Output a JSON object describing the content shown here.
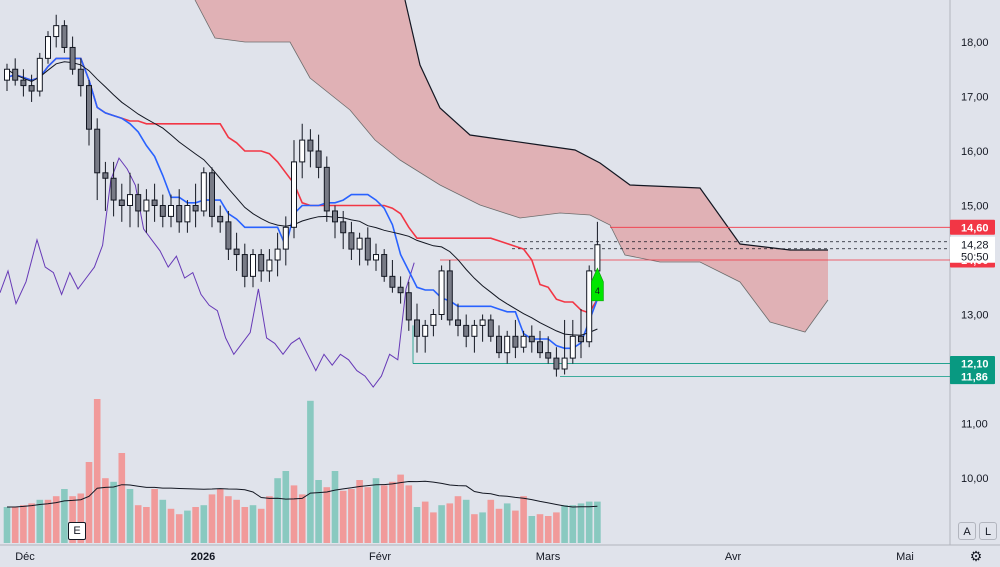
{
  "chart_data": {
    "type": "candlestick",
    "price_axis": {
      "ticks": [
        "18,00",
        "17,00",
        "16,00",
        "15,00",
        "13,00",
        "12,00",
        "11,00",
        "10,00"
      ],
      "tick_values": [
        18,
        17,
        16,
        15,
        13,
        12,
        11,
        10
      ],
      "range": [
        9.35,
        18.6
      ]
    },
    "time_axis": {
      "labels": [
        "Déc",
        "2026",
        "Févr",
        "Mars",
        "Avr",
        "Mai"
      ],
      "bold_label": "2026"
    },
    "price_tags": [
      {
        "label": "14,60",
        "value": 14.6,
        "color": "#f23645"
      },
      {
        "label": "14,00",
        "value": 14.0,
        "color": "#f23645"
      },
      {
        "label": "12,10",
        "value": 12.1,
        "color": "#089981"
      },
      {
        "label": "11,86",
        "value": 11.86,
        "color": "#089981"
      }
    ],
    "last_price": {
      "value_label": "14,28",
      "countdown_label": "50:50",
      "value": 14.28
    },
    "candles_ohlc": [
      [
        17.3,
        17.6,
        17.1,
        17.5
      ],
      [
        17.5,
        17.7,
        17.2,
        17.3
      ],
      [
        17.3,
        17.5,
        17.0,
        17.2
      ],
      [
        17.2,
        17.4,
        16.9,
        17.1
      ],
      [
        17.1,
        17.8,
        17.0,
        17.7
      ],
      [
        17.7,
        18.2,
        17.6,
        18.1
      ],
      [
        18.1,
        18.5,
        17.9,
        18.3
      ],
      [
        18.3,
        18.4,
        17.8,
        17.9
      ],
      [
        17.9,
        18.1,
        17.4,
        17.5
      ],
      [
        17.5,
        17.7,
        17.0,
        17.2
      ],
      [
        17.2,
        17.3,
        16.1,
        16.4
      ],
      [
        16.4,
        16.6,
        15.1,
        15.6
      ],
      [
        15.6,
        15.8,
        14.9,
        15.5
      ],
      [
        15.5,
        15.8,
        14.8,
        15.1
      ],
      [
        15.1,
        15.4,
        14.7,
        15.0
      ],
      [
        15.0,
        15.6,
        14.6,
        15.2
      ],
      [
        15.2,
        15.4,
        14.6,
        14.9
      ],
      [
        14.9,
        15.3,
        14.5,
        15.1
      ],
      [
        15.1,
        15.4,
        14.7,
        15.0
      ],
      [
        15.0,
        15.2,
        14.6,
        14.8
      ],
      [
        14.8,
        15.2,
        14.6,
        15.0
      ],
      [
        15.0,
        15.3,
        14.5,
        14.7
      ],
      [
        14.7,
        15.1,
        14.5,
        15.0
      ],
      [
        15.0,
        15.4,
        14.6,
        14.9
      ],
      [
        14.9,
        15.7,
        14.8,
        15.6
      ],
      [
        15.6,
        15.7,
        14.6,
        14.8
      ],
      [
        14.8,
        15.0,
        14.5,
        14.7
      ],
      [
        14.7,
        14.9,
        14.0,
        14.2
      ],
      [
        14.2,
        14.5,
        13.8,
        14.1
      ],
      [
        14.1,
        14.3,
        13.5,
        13.7
      ],
      [
        13.7,
        14.2,
        13.5,
        14.1
      ],
      [
        14.1,
        14.2,
        13.6,
        13.8
      ],
      [
        13.8,
        14.2,
        13.6,
        14.0
      ],
      [
        14.0,
        14.5,
        13.7,
        14.2
      ],
      [
        14.2,
        14.8,
        13.9,
        14.6
      ],
      [
        14.6,
        16.2,
        14.4,
        15.8
      ],
      [
        15.8,
        16.5,
        15.5,
        16.2
      ],
      [
        16.2,
        16.4,
        15.7,
        16.0
      ],
      [
        16.0,
        16.3,
        15.5,
        15.7
      ],
      [
        15.7,
        15.9,
        14.7,
        14.9
      ],
      [
        14.9,
        15.0,
        14.4,
        14.7
      ],
      [
        14.7,
        14.9,
        14.2,
        14.5
      ],
      [
        14.5,
        14.7,
        14.0,
        14.2
      ],
      [
        14.2,
        14.5,
        13.9,
        14.4
      ],
      [
        14.4,
        14.6,
        13.9,
        14.0
      ],
      [
        14.0,
        14.3,
        13.8,
        14.1
      ],
      [
        14.1,
        14.2,
        13.6,
        13.7
      ],
      [
        13.7,
        14.0,
        13.4,
        13.5
      ],
      [
        13.5,
        13.7,
        13.2,
        13.4
      ],
      [
        13.4,
        13.6,
        12.7,
        12.9
      ],
      [
        12.9,
        13.2,
        12.3,
        12.6
      ],
      [
        12.6,
        12.9,
        12.3,
        12.8
      ],
      [
        12.8,
        13.1,
        12.6,
        13.0
      ],
      [
        13.0,
        13.9,
        12.9,
        13.8
      ],
      [
        13.8,
        14.0,
        12.8,
        12.9
      ],
      [
        12.9,
        13.2,
        12.6,
        12.8
      ],
      [
        12.8,
        13.0,
        12.4,
        12.6
      ],
      [
        12.6,
        12.9,
        12.3,
        12.8
      ],
      [
        12.8,
        13.0,
        12.5,
        12.9
      ],
      [
        12.9,
        13.0,
        12.5,
        12.6
      ],
      [
        12.6,
        12.8,
        12.2,
        12.3
      ],
      [
        12.3,
        12.7,
        12.1,
        12.6
      ],
      [
        12.6,
        12.9,
        12.2,
        12.4
      ],
      [
        12.4,
        12.7,
        12.3,
        12.6
      ],
      [
        12.6,
        12.8,
        12.3,
        12.5
      ],
      [
        12.5,
        12.7,
        12.2,
        12.3
      ],
      [
        12.3,
        12.6,
        12.1,
        12.2
      ],
      [
        12.2,
        12.4,
        11.86,
        12.0
      ],
      [
        12.0,
        12.9,
        11.9,
        12.2
      ],
      [
        12.2,
        12.9,
        12.1,
        12.6
      ],
      [
        12.6,
        13.1,
        12.2,
        12.5
      ],
      [
        12.5,
        13.9,
        12.4,
        13.8
      ],
      [
        13.8,
        14.7,
        13.7,
        14.28
      ]
    ],
    "signal_marker": {
      "label": "4",
      "color": "#00e600"
    },
    "series_colors": {
      "kijun": "#f23645",
      "tenkan": "#2962ff",
      "sma": "#131722",
      "chikou": "#673ab7",
      "cloud": "#e0a0a3"
    },
    "volume": {
      "values": [
        40,
        40,
        42,
        44,
        48,
        48,
        52,
        60,
        52,
        55,
        90,
        160,
        72,
        68,
        100,
        60,
        42,
        40,
        60,
        48,
        38,
        32,
        36,
        40,
        42,
        54,
        60,
        52,
        48,
        40,
        42,
        38,
        52,
        72,
        80,
        64,
        54,
        158,
        70,
        62,
        80,
        58,
        60,
        70,
        62,
        72,
        64,
        68,
        76,
        64,
        40,
        46,
        34,
        42,
        44,
        52,
        48,
        32,
        34,
        48,
        38,
        44,
        36,
        52,
        30,
        32,
        30,
        34,
        42,
        42,
        44,
        46,
        46
      ],
      "up": [
        true,
        false,
        false,
        false,
        true,
        false,
        false,
        true,
        false,
        false,
        false,
        false,
        false,
        true,
        false,
        true,
        false,
        false,
        false,
        true,
        false,
        false,
        true,
        false,
        true,
        false,
        false,
        false,
        false,
        false,
        true,
        false,
        false,
        true,
        true,
        false,
        false,
        true,
        true,
        false,
        true,
        false,
        false,
        false,
        false,
        true,
        false,
        false,
        false,
        false,
        true,
        false,
        false,
        true,
        false,
        false,
        true,
        false,
        true,
        false,
        false,
        true,
        false,
        false,
        true,
        false,
        false,
        false,
        true,
        true,
        true,
        true,
        true
      ]
    },
    "buttons": {
      "auto": "A",
      "log": "L",
      "settings": "⚙"
    },
    "event_flag": "E"
  }
}
